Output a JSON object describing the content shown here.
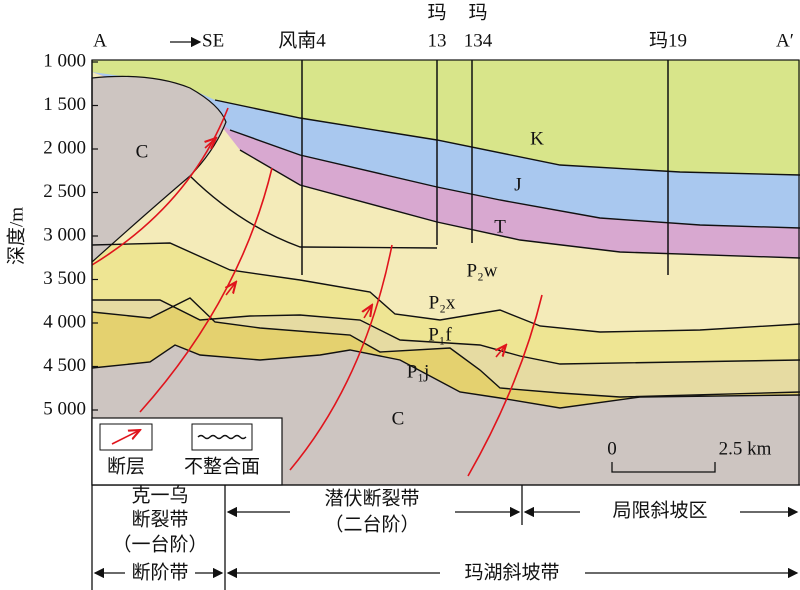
{
  "header": {
    "section_start": "A",
    "direction": "SE",
    "section_end": "A′",
    "wells": [
      {
        "label": "风南4"
      },
      {
        "label_top": "玛",
        "label_bottom": "13"
      },
      {
        "label_top": "玛",
        "label_bottom": "134"
      },
      {
        "label": "玛19"
      }
    ]
  },
  "axis": {
    "label": "深度/m",
    "ticks": [
      "1 000",
      "1 500",
      "2 000",
      "2 500",
      "3 000",
      "3 500",
      "4 000",
      "4 500",
      "5 000"
    ]
  },
  "layers": [
    "C",
    "K",
    "J",
    "T",
    "P₂w",
    "P₂x",
    "P₁f",
    "P₁j",
    "C"
  ],
  "legend": {
    "fault": "断层",
    "unconformity": "不整合面"
  },
  "scale": {
    "start": "0",
    "end": "2.5 km"
  },
  "zones": {
    "row1": [
      "克一乌",
      "断裂带",
      "（一台阶）",
      "潜伏断裂带",
      "（二台阶）",
      "局限斜坡区"
    ],
    "row2": [
      "断阶带",
      "玛湖斜坡带"
    ]
  }
}
